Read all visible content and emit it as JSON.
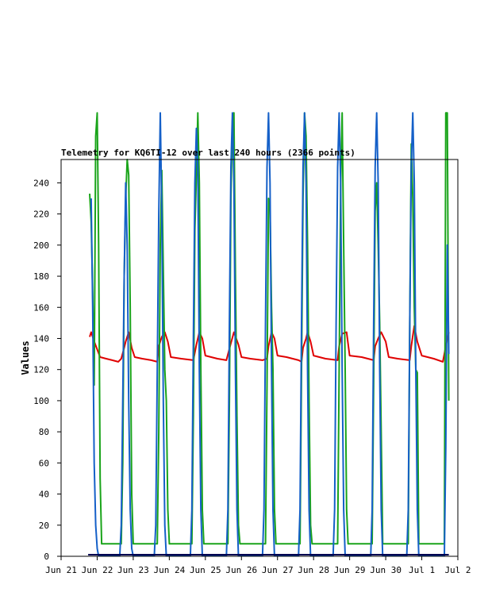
{
  "chart_data": {
    "type": "line",
    "title": "Telemetry for KQ6TI-12 over last 240 hours (2366 points)",
    "xlabel": "",
    "ylabel": "Values",
    "ylim": [
      0,
      255
    ],
    "xlim": [
      "2025-06-21T00:00",
      "2025-07-02T00:00"
    ],
    "yticks": [
      0,
      20,
      40,
      60,
      80,
      100,
      120,
      140,
      160,
      180,
      200,
      220,
      240
    ],
    "xticks": [
      "Jun 21",
      "Jun 22",
      "Jun 23",
      "Jun 24",
      "Jun 25",
      "Jun 26",
      "Jun 27",
      "Jun 28",
      "Jun 29",
      "Jun 30",
      "Jul 1",
      "Jul 2"
    ],
    "grid": false,
    "colors": {
      "red": "#e00000",
      "green": "#1aa41a",
      "blue": "#1560c8",
      "navy": "#000050",
      "frame": "#000000"
    },
    "series": [
      {
        "color": "#e00000",
        "points": [
          [
            "2025-06-21T19:00",
            141
          ],
          [
            "2025-06-21T20:00",
            144
          ],
          [
            "2025-06-21T22:00",
            138
          ],
          [
            "2025-06-22T02:00",
            128
          ],
          [
            "2025-06-22T06:00",
            127
          ],
          [
            "2025-06-22T10:00",
            126
          ],
          [
            "2025-06-22T14:00",
            125
          ],
          [
            "2025-06-22T16:00",
            127
          ],
          [
            "2025-06-22T18:00",
            134
          ],
          [
            "2025-06-22T19:00",
            138
          ],
          [
            "2025-06-22T21:00",
            144
          ],
          [
            "2025-06-22T23:00",
            134
          ],
          [
            "2025-06-23T01:00",
            128
          ],
          [
            "2025-06-23T06:00",
            127
          ],
          [
            "2025-06-23T12:00",
            126
          ],
          [
            "2025-06-23T16:00",
            125
          ],
          [
            "2025-06-23T17:00",
            135
          ],
          [
            "2025-06-23T19:00",
            141
          ],
          [
            "2025-06-23T21:00",
            144
          ],
          [
            "2025-06-23T23:00",
            138
          ],
          [
            "2025-06-24T01:00",
            128
          ],
          [
            "2025-06-24T08:00",
            127
          ],
          [
            "2025-06-24T16:00",
            126
          ],
          [
            "2025-06-24T18:00",
            136
          ],
          [
            "2025-06-24T20:00",
            144
          ],
          [
            "2025-06-24T22:00",
            140
          ],
          [
            "2025-06-25T00:00",
            129
          ],
          [
            "2025-06-25T08:00",
            127
          ],
          [
            "2025-06-25T14:00",
            126
          ],
          [
            "2025-06-25T17:00",
            137
          ],
          [
            "2025-06-25T19:00",
            144
          ],
          [
            "2025-06-25T22:00",
            136
          ],
          [
            "2025-06-26T00:00",
            128
          ],
          [
            "2025-06-26T06:00",
            127
          ],
          [
            "2025-06-26T14:00",
            126
          ],
          [
            "2025-06-26T17:00",
            127
          ],
          [
            "2025-06-26T18:00",
            135
          ],
          [
            "2025-06-26T20:00",
            144
          ],
          [
            "2025-06-26T22:00",
            140
          ],
          [
            "2025-06-27T00:00",
            129
          ],
          [
            "2025-06-27T06:00",
            128
          ],
          [
            "2025-06-27T14:00",
            126
          ],
          [
            "2025-06-27T16:00",
            125
          ],
          [
            "2025-06-27T17:00",
            134
          ],
          [
            "2025-06-27T19:00",
            140
          ],
          [
            "2025-06-27T20:00",
            144
          ],
          [
            "2025-06-27T22:00",
            138
          ],
          [
            "2025-06-28T00:00",
            129
          ],
          [
            "2025-06-28T08:00",
            127
          ],
          [
            "2025-06-28T16:00",
            126
          ],
          [
            "2025-06-28T17:00",
            135
          ],
          [
            "2025-06-28T19:00",
            143
          ],
          [
            "2025-06-28T22:00",
            144
          ],
          [
            "2025-06-29T00:00",
            129
          ],
          [
            "2025-06-29T08:00",
            128
          ],
          [
            "2025-06-29T16:00",
            126
          ],
          [
            "2025-06-29T17:00",
            135
          ],
          [
            "2025-06-29T19:00",
            140
          ],
          [
            "2025-06-29T21:00",
            144
          ],
          [
            "2025-06-30T00:00",
            138
          ],
          [
            "2025-06-30T02:00",
            128
          ],
          [
            "2025-06-30T08:00",
            127
          ],
          [
            "2025-06-30T16:00",
            126
          ],
          [
            "2025-06-30T17:00",
            135
          ],
          [
            "2025-06-30T19:00",
            148
          ],
          [
            "2025-06-30T21:00",
            138
          ],
          [
            "2025-07-01T00:00",
            129
          ],
          [
            "2025-07-01T08:00",
            127
          ],
          [
            "2025-07-01T14:00",
            125
          ],
          [
            "2025-07-01T16:00",
            135
          ],
          [
            "2025-07-01T18:00",
            144
          ]
        ]
      },
      {
        "color": "#1aa41a",
        "points": [
          [
            "2025-06-21T19:00",
            233
          ],
          [
            "2025-06-21T20:00",
            215
          ],
          [
            "2025-06-21T21:00",
            170
          ],
          [
            "2025-06-21T22:00",
            110
          ],
          [
            "2025-06-21T23:00",
            270
          ],
          [
            "2025-06-22T00:00",
            285
          ],
          [
            "2025-06-22T01:00",
            200
          ],
          [
            "2025-06-22T02:00",
            50
          ],
          [
            "2025-06-22T03:00",
            8
          ],
          [
            "2025-06-22T16:00",
            8
          ],
          [
            "2025-06-22T17:00",
            60
          ],
          [
            "2025-06-22T18:00",
            180
          ],
          [
            "2025-06-22T19:00",
            230
          ],
          [
            "2025-06-22T20:00",
            255
          ],
          [
            "2025-06-22T21:00",
            245
          ],
          [
            "2025-06-22T22:00",
            160
          ],
          [
            "2025-06-22T23:00",
            40
          ],
          [
            "2025-06-23T00:00",
            8
          ],
          [
            "2025-06-23T16:00",
            8
          ],
          [
            "2025-06-23T17:00",
            80
          ],
          [
            "2025-06-23T18:00",
            200
          ],
          [
            "2025-06-23T19:00",
            248
          ],
          [
            "2025-06-23T21:00",
            120
          ],
          [
            "2025-06-23T22:00",
            100
          ],
          [
            "2025-06-23T23:00",
            30
          ],
          [
            "2025-06-24T00:00",
            8
          ],
          [
            "2025-06-24T15:00",
            8
          ],
          [
            "2025-06-24T16:00",
            90
          ],
          [
            "2025-06-24T17:00",
            210
          ],
          [
            "2025-06-24T18:00",
            245
          ],
          [
            "2025-06-24T19:00",
            285
          ],
          [
            "2025-06-24T20:00",
            240
          ],
          [
            "2025-06-24T21:00",
            120
          ],
          [
            "2025-06-24T22:00",
            30
          ],
          [
            "2025-06-24T23:00",
            8
          ],
          [
            "2025-06-25T15:00",
            8
          ],
          [
            "2025-06-25T16:00",
            100
          ],
          [
            "2025-06-25T17:00",
            230
          ],
          [
            "2025-06-25T18:00",
            280
          ],
          [
            "2025-06-25T19:00",
            285
          ],
          [
            "2025-06-25T20:00",
            180
          ],
          [
            "2025-06-25T21:00",
            90
          ],
          [
            "2025-06-25T22:00",
            20
          ],
          [
            "2025-06-25T23:00",
            8
          ],
          [
            "2025-06-26T16:00",
            8
          ],
          [
            "2025-06-26T17:00",
            110
          ],
          [
            "2025-06-26T18:00",
            230
          ],
          [
            "2025-06-26T19:00",
            222
          ],
          [
            "2025-06-26T20:00",
            160
          ],
          [
            "2025-06-26T21:00",
            120
          ],
          [
            "2025-06-26T22:00",
            30
          ],
          [
            "2025-06-26T23:00",
            8
          ],
          [
            "2025-06-27T15:00",
            8
          ],
          [
            "2025-06-27T16:00",
            120
          ],
          [
            "2025-06-27T17:00",
            230
          ],
          [
            "2025-06-27T18:00",
            285
          ],
          [
            "2025-06-27T19:00",
            270
          ],
          [
            "2025-06-27T20:00",
            200
          ],
          [
            "2025-06-27T21:00",
            100
          ],
          [
            "2025-06-27T22:00",
            20
          ],
          [
            "2025-06-27T23:00",
            8
          ],
          [
            "2025-06-28T16:00",
            8
          ],
          [
            "2025-06-28T17:00",
            120
          ],
          [
            "2025-06-28T18:00",
            238
          ],
          [
            "2025-06-28T19:00",
            285
          ],
          [
            "2025-06-28T20:00",
            200
          ],
          [
            "2025-06-28T21:00",
            120
          ],
          [
            "2025-06-28T22:00",
            30
          ],
          [
            "2025-06-28T23:00",
            8
          ],
          [
            "2025-06-29T15:00",
            8
          ],
          [
            "2025-06-29T16:00",
            110
          ],
          [
            "2025-06-29T17:00",
            222
          ],
          [
            "2025-06-29T18:00",
            240
          ],
          [
            "2025-06-29T19:00",
            200
          ],
          [
            "2025-06-29T20:00",
            150
          ],
          [
            "2025-06-29T21:00",
            80
          ],
          [
            "2025-06-29T22:00",
            8
          ],
          [
            "2025-06-30T15:00",
            8
          ],
          [
            "2025-06-30T16:00",
            150
          ],
          [
            "2025-06-30T17:00",
            265
          ],
          [
            "2025-06-30T18:00",
            230
          ],
          [
            "2025-06-30T19:00",
            160
          ],
          [
            "2025-06-30T20:00",
            120
          ],
          [
            "2025-06-30T21:00",
            118
          ],
          [
            "2025-06-30T22:00",
            8
          ],
          [
            "2025-07-01T15:00",
            8
          ],
          [
            "2025-07-01T16:00",
            285
          ],
          [
            "2025-07-01T17:00",
            285
          ],
          [
            "2025-07-01T18:00",
            100
          ]
        ]
      },
      {
        "color": "#1560c8",
        "points": [
          [
            "2025-06-21T20:00",
            230
          ],
          [
            "2025-06-21T21:00",
            160
          ],
          [
            "2025-06-21T22:00",
            60
          ],
          [
            "2025-06-21T23:00",
            20
          ],
          [
            "2025-06-22T00:00",
            5
          ],
          [
            "2025-06-22T01:00",
            0
          ],
          [
            "2025-06-22T15:00",
            0
          ],
          [
            "2025-06-22T16:00",
            20
          ],
          [
            "2025-06-22T17:00",
            100
          ],
          [
            "2025-06-22T18:00",
            180
          ],
          [
            "2025-06-22T19:00",
            240
          ],
          [
            "2025-06-22T20:00",
            200
          ],
          [
            "2025-06-22T21:00",
            100
          ],
          [
            "2025-06-22T22:00",
            30
          ],
          [
            "2025-06-22T23:00",
            5
          ],
          [
            "2025-06-23T00:00",
            0
          ],
          [
            "2025-06-23T14:00",
            0
          ],
          [
            "2025-06-23T15:00",
            20
          ],
          [
            "2025-06-23T16:00",
            120
          ],
          [
            "2025-06-23T17:00",
            220
          ],
          [
            "2025-06-23T18:00",
            285
          ],
          [
            "2025-06-23T19:00",
            220
          ],
          [
            "2025-06-23T20:00",
            100
          ],
          [
            "2025-06-23T21:00",
            20
          ],
          [
            "2025-06-23T22:00",
            0
          ],
          [
            "2025-06-24T14:00",
            0
          ],
          [
            "2025-06-24T15:00",
            30
          ],
          [
            "2025-06-24T16:00",
            140
          ],
          [
            "2025-06-24T17:00",
            240
          ],
          [
            "2025-06-24T18:00",
            275
          ],
          [
            "2025-06-24T19:00",
            250
          ],
          [
            "2025-06-24T20:00",
            120
          ],
          [
            "2025-06-24T21:00",
            30
          ],
          [
            "2025-06-24T22:00",
            0
          ],
          [
            "2025-06-25T14:00",
            0
          ],
          [
            "2025-06-25T15:00",
            30
          ],
          [
            "2025-06-25T16:00",
            150
          ],
          [
            "2025-06-25T17:00",
            250
          ],
          [
            "2025-06-25T18:00",
            285
          ],
          [
            "2025-06-25T19:00",
            240
          ],
          [
            "2025-06-25T20:00",
            120
          ],
          [
            "2025-06-25T21:00",
            30
          ],
          [
            "2025-06-25T22:00",
            0
          ],
          [
            "2025-06-26T14:00",
            0
          ],
          [
            "2025-06-26T15:00",
            30
          ],
          [
            "2025-06-26T16:00",
            150
          ],
          [
            "2025-06-26T17:00",
            250
          ],
          [
            "2025-06-26T18:00",
            285
          ],
          [
            "2025-06-26T19:00",
            240
          ],
          [
            "2025-06-26T20:00",
            120
          ],
          [
            "2025-06-26T21:00",
            30
          ],
          [
            "2025-06-26T22:00",
            0
          ],
          [
            "2025-06-27T14:00",
            0
          ],
          [
            "2025-06-27T15:00",
            30
          ],
          [
            "2025-06-27T16:00",
            150
          ],
          [
            "2025-06-27T17:00",
            250
          ],
          [
            "2025-06-27T18:00",
            285
          ],
          [
            "2025-06-27T19:00",
            240
          ],
          [
            "2025-06-27T20:00",
            120
          ],
          [
            "2025-06-27T21:00",
            30
          ],
          [
            "2025-06-27T22:00",
            0
          ],
          [
            "2025-06-28T13:00",
            0
          ],
          [
            "2025-06-28T14:00",
            30
          ],
          [
            "2025-06-28T15:00",
            150
          ],
          [
            "2025-06-28T16:00",
            250
          ],
          [
            "2025-06-28T17:00",
            285
          ],
          [
            "2025-06-28T18:00",
            240
          ],
          [
            "2025-06-28T19:00",
            120
          ],
          [
            "2025-06-28T20:00",
            30
          ],
          [
            "2025-06-28T21:00",
            0
          ],
          [
            "2025-06-29T14:00",
            0
          ],
          [
            "2025-06-29T15:00",
            30
          ],
          [
            "2025-06-29T16:00",
            150
          ],
          [
            "2025-06-29T17:00",
            250
          ],
          [
            "2025-06-29T18:00",
            285
          ],
          [
            "2025-06-29T19:00",
            240
          ],
          [
            "2025-06-29T20:00",
            120
          ],
          [
            "2025-06-29T21:00",
            30
          ],
          [
            "2025-06-29T22:00",
            0
          ],
          [
            "2025-06-30T14:00",
            0
          ],
          [
            "2025-06-30T15:00",
            30
          ],
          [
            "2025-06-30T16:00",
            150
          ],
          [
            "2025-06-30T17:00",
            250
          ],
          [
            "2025-06-30T18:00",
            285
          ],
          [
            "2025-06-30T19:00",
            240
          ],
          [
            "2025-06-30T20:00",
            120
          ],
          [
            "2025-06-30T21:00",
            30
          ],
          [
            "2025-06-30T22:00",
            0
          ],
          [
            "2025-07-01T15:00",
            0
          ],
          [
            "2025-07-01T16:00",
            70
          ],
          [
            "2025-07-01T17:00",
            200
          ],
          [
            "2025-07-01T18:00",
            130
          ]
        ]
      },
      {
        "color": "#000050",
        "points": [
          [
            "2025-06-21T18:00",
            1
          ],
          [
            "2025-07-01T18:00",
            1
          ]
        ]
      }
    ]
  }
}
